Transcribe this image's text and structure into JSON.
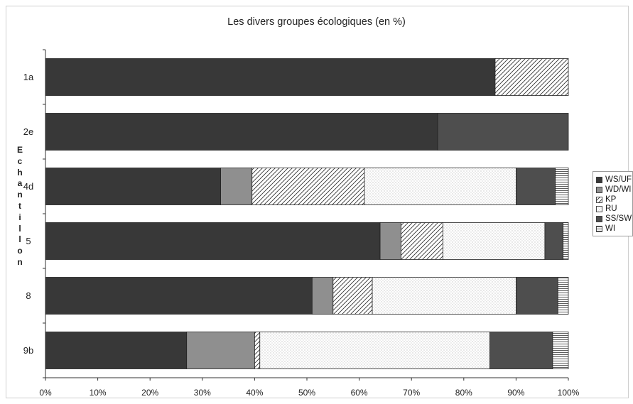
{
  "chart_data": {
    "type": "bar",
    "orientation": "horizontal",
    "stacked": true,
    "title": "Les divers groupes écologiques (en %)",
    "ylabel": "Echantillon",
    "xlim": [
      0,
      100
    ],
    "x_ticks": [
      "0%",
      "10%",
      "20%",
      "30%",
      "40%",
      "50%",
      "60%",
      "70%",
      "80%",
      "90%",
      "100%"
    ],
    "categories": [
      "1a",
      "2e",
      "4d",
      "5",
      "8",
      "9b"
    ],
    "legend_position": "right",
    "series": [
      {
        "name": "WS/UF",
        "pattern": "solid-dark",
        "color": "#383838",
        "values": [
          86,
          75,
          33.5,
          64,
          51,
          27
        ]
      },
      {
        "name": "WD/WI",
        "pattern": "solid-gray",
        "color": "#8f8f8f",
        "values": [
          0,
          0,
          6,
          4,
          4,
          13
        ]
      },
      {
        "name": "KP",
        "pattern": "diagonal",
        "color": "#ffffff",
        "values": [
          14,
          0,
          21.5,
          8,
          7.5,
          1
        ]
      },
      {
        "name": "RU",
        "pattern": "dots",
        "color": "#ffffff",
        "values": [
          0,
          0,
          29,
          19.5,
          27.5,
          44
        ]
      },
      {
        "name": "SS/SW",
        "pattern": "solid-medium",
        "color": "#4e4e4e",
        "values": [
          0,
          25,
          7.5,
          3.5,
          8,
          12
        ]
      },
      {
        "name": "WI",
        "pattern": "horizontal-lines",
        "color": "#ffffff",
        "values": [
          0,
          0,
          2.5,
          1,
          2,
          3
        ]
      }
    ]
  }
}
